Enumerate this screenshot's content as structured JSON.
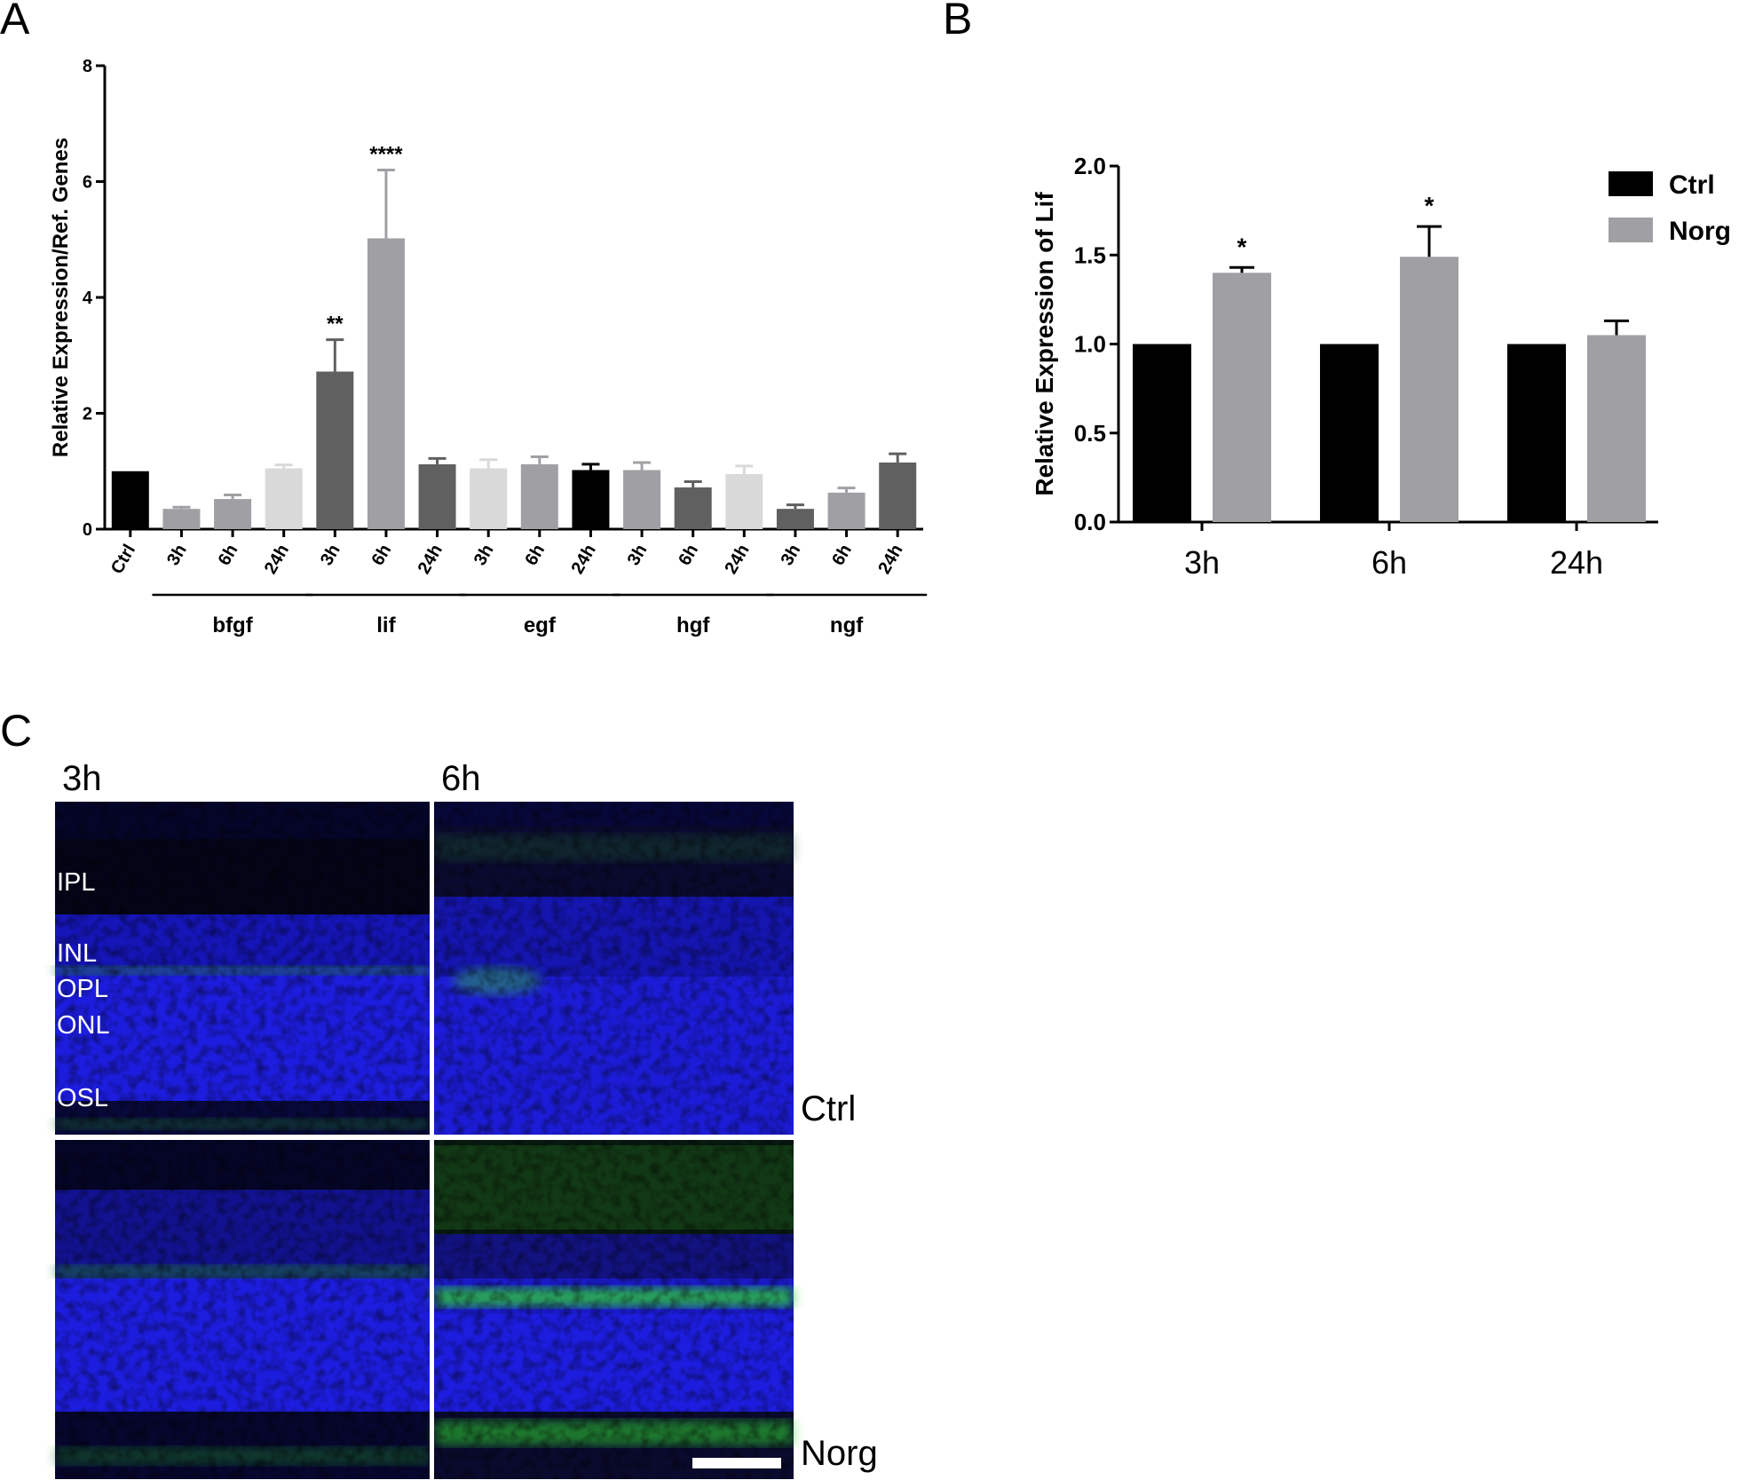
{
  "panel_labels": {
    "a": "A",
    "b": "B",
    "c": "C"
  },
  "colors": {
    "black": "#000000",
    "mid_gray": "#a0a0a4",
    "light_gray": "#d9d9d9",
    "dark_gray": "#606060",
    "retina_blue": "#1818d8",
    "retina_green": "#2fd42f",
    "divider": "#ffffff"
  },
  "chart_data": [
    {
      "type": "bar",
      "panel": "A",
      "ylabel": "Relative Expression/Ref. Genes",
      "ylim": [
        0,
        8
      ],
      "yticks": [
        "0",
        "2",
        "4",
        "6",
        "8"
      ],
      "categories": [
        "Ctrl",
        "3h",
        "6h",
        "24h",
        "3h",
        "6h",
        "24h",
        "3h",
        "6h",
        "24h",
        "3h",
        "6h",
        "24h",
        "3h",
        "6h",
        "24h"
      ],
      "values": [
        1.0,
        0.35,
        0.52,
        1.05,
        2.72,
        5.02,
        1.12,
        1.05,
        1.12,
        1.02,
        1.02,
        0.72,
        0.95,
        0.35,
        0.63,
        1.15
      ],
      "errors": [
        0,
        0.03,
        0.07,
        0.06,
        0.55,
        1.18,
        0.1,
        0.15,
        0.13,
        0.1,
        0.13,
        0.1,
        0.14,
        0.07,
        0.08,
        0.15
      ],
      "bar_colors": [
        "black",
        "mid_gray",
        "mid_gray",
        "light_gray",
        "dark_gray",
        "mid_gray",
        "dark_gray",
        "light_gray",
        "mid_gray",
        "black",
        "mid_gray",
        "dark_gray",
        "light_gray",
        "dark_gray",
        "mid_gray",
        "dark_gray"
      ],
      "annotations": [
        {
          "category_index": 4,
          "text": "**"
        },
        {
          "category_index": 5,
          "text": "****"
        }
      ],
      "groups": [
        {
          "label": "bfgf",
          "from": 1,
          "to": 3
        },
        {
          "label": "lif",
          "from": 4,
          "to": 6
        },
        {
          "label": "egf",
          "from": 7,
          "to": 9
        },
        {
          "label": "hgf",
          "from": 10,
          "to": 12
        },
        {
          "label": "ngf",
          "from": 13,
          "to": 15
        }
      ],
      "grid": false
    },
    {
      "type": "bar",
      "panel": "B",
      "ylabel": "Relative Expression of Lif",
      "ylim": [
        0,
        2.0
      ],
      "yticks": [
        "0.0",
        "0.5",
        "1.0",
        "1.5",
        "2.0"
      ],
      "categories": [
        "3h",
        "6h",
        "24h"
      ],
      "series": [
        {
          "name": "Ctrl",
          "color": "#000000",
          "values": [
            1.0,
            1.0,
            1.0
          ],
          "errors": [
            0,
            0,
            0
          ]
        },
        {
          "name": "Norg",
          "color": "#a0a0a4",
          "values": [
            1.4,
            1.49,
            1.05
          ],
          "errors": [
            0.03,
            0.17,
            0.08
          ]
        }
      ],
      "annotations": [
        {
          "category_index": 0,
          "series": 1,
          "text": "*"
        },
        {
          "category_index": 1,
          "series": 1,
          "text": "*"
        }
      ],
      "legend": "top-right",
      "grid": false
    }
  ],
  "micrograph": {
    "time_labels": [
      "3h",
      "6h"
    ],
    "row_labels": [
      "Ctrl",
      "Norg"
    ],
    "layer_labels": [
      "IPL",
      "INL",
      "OPL",
      "ONL",
      "OSL"
    ]
  }
}
